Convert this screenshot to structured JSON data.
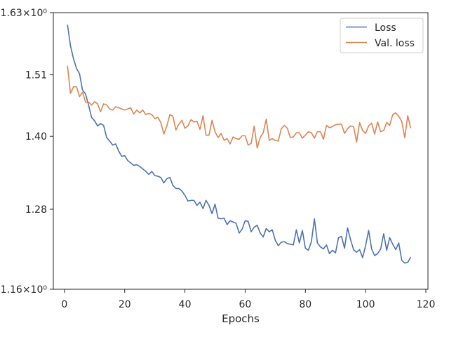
{
  "chart_data": {
    "type": "line",
    "title": "",
    "xlabel": "Epochs",
    "ylabel": "",
    "xlim": [
      -3.7,
      120.7
    ],
    "ylim": [
      1.16,
      1.63
    ],
    "yscale": "log",
    "grid": false,
    "legend_position": "top-right",
    "x_ticks": [
      0,
      20,
      40,
      60,
      80,
      100,
      120
    ],
    "x_tick_labels": [
      "0",
      "20",
      "40",
      "60",
      "80",
      "100",
      "120"
    ],
    "y_ticks": [
      {
        "value": 1.16,
        "label": "1.16×10⁰"
      },
      {
        "value": 1.28,
        "label": "1.28"
      },
      {
        "value": 1.4,
        "label": "1.40"
      },
      {
        "value": 1.51,
        "label": "1.51"
      },
      {
        "value": 1.63,
        "label": "1.63×10⁰"
      }
    ],
    "x": [
      1,
      2,
      3,
      4,
      5,
      6,
      7,
      8,
      9,
      10,
      11,
      12,
      13,
      14,
      15,
      16,
      17,
      18,
      19,
      20,
      21,
      22,
      23,
      24,
      25,
      26,
      27,
      28,
      29,
      30,
      31,
      32,
      33,
      34,
      35,
      36,
      37,
      38,
      39,
      40,
      41,
      42,
      43,
      44,
      45,
      46,
      47,
      48,
      49,
      50,
      51,
      52,
      53,
      54,
      55,
      56,
      57,
      58,
      59,
      60,
      61,
      62,
      63,
      64,
      65,
      66,
      67,
      68,
      69,
      70,
      71,
      72,
      73,
      74,
      75,
      76,
      77,
      78,
      79,
      80,
      81,
      82,
      83,
      84,
      85,
      86,
      87,
      88,
      89,
      90,
      91,
      92,
      93,
      94,
      95,
      96,
      97,
      98,
      99,
      100,
      101,
      102,
      103,
      104,
      105,
      106,
      107,
      108,
      109,
      110,
      111,
      112,
      113,
      114,
      115
    ],
    "series": [
      {
        "name": "Loss",
        "color": "#4c72b0",
        "values": [
          1.606,
          1.565,
          1.54,
          1.522,
          1.512,
          1.482,
          1.475,
          1.455,
          1.433,
          1.427,
          1.418,
          1.422,
          1.419,
          1.398,
          1.392,
          1.385,
          1.387,
          1.375,
          1.366,
          1.367,
          1.359,
          1.355,
          1.351,
          1.352,
          1.349,
          1.345,
          1.341,
          1.336,
          1.341,
          1.334,
          1.333,
          1.331,
          1.322,
          1.329,
          1.331,
          1.318,
          1.313,
          1.313,
          1.309,
          1.302,
          1.293,
          1.294,
          1.294,
          1.286,
          1.291,
          1.281,
          1.294,
          1.286,
          1.273,
          1.288,
          1.266,
          1.265,
          1.266,
          1.256,
          1.262,
          1.26,
          1.258,
          1.243,
          1.249,
          1.262,
          1.261,
          1.245,
          1.252,
          1.255,
          1.243,
          1.237,
          1.25,
          1.245,
          1.248,
          1.232,
          1.224,
          1.229,
          1.23,
          1.227,
          1.226,
          1.225,
          1.248,
          1.228,
          1.247,
          1.22,
          1.217,
          1.23,
          1.265,
          1.228,
          1.222,
          1.219,
          1.225,
          1.212,
          1.217,
          1.213,
          1.236,
          1.238,
          1.22,
          1.251,
          1.233,
          1.218,
          1.214,
          1.218,
          1.206,
          1.224,
          1.247,
          1.219,
          1.209,
          1.212,
          1.219,
          1.242,
          1.217,
          1.236,
          1.226,
          1.218,
          1.228,
          1.202,
          1.198,
          1.199,
          1.207
        ]
      },
      {
        "name": "Val. loss",
        "color": "#dd8452",
        "values": [
          1.527,
          1.476,
          1.488,
          1.488,
          1.47,
          1.478,
          1.46,
          1.46,
          1.455,
          1.461,
          1.457,
          1.443,
          1.457,
          1.455,
          1.448,
          1.446,
          1.452,
          1.45,
          1.448,
          1.446,
          1.448,
          1.45,
          1.439,
          1.446,
          1.441,
          1.446,
          1.438,
          1.44,
          1.438,
          1.431,
          1.433,
          1.424,
          1.404,
          1.418,
          1.438,
          1.435,
          1.411,
          1.421,
          1.428,
          1.414,
          1.418,
          1.429,
          1.425,
          1.426,
          1.412,
          1.436,
          1.402,
          1.402,
          1.428,
          1.408,
          1.398,
          1.405,
          1.393,
          1.396,
          1.387,
          1.399,
          1.396,
          1.395,
          1.401,
          1.401,
          1.385,
          1.388,
          1.418,
          1.38,
          1.398,
          1.406,
          1.43,
          1.393,
          1.396,
          1.393,
          1.392,
          1.413,
          1.419,
          1.414,
          1.398,
          1.399,
          1.406,
          1.406,
          1.397,
          1.402,
          1.408,
          1.406,
          1.397,
          1.408,
          1.408,
          1.395,
          1.419,
          1.415,
          1.417,
          1.42,
          1.421,
          1.421,
          1.405,
          1.413,
          1.418,
          1.417,
          1.39,
          1.424,
          1.41,
          1.405,
          1.418,
          1.423,
          1.404,
          1.425,
          1.408,
          1.41,
          1.424,
          1.419,
          1.438,
          1.441,
          1.435,
          1.426,
          1.398,
          1.436,
          1.414
        ]
      }
    ]
  }
}
